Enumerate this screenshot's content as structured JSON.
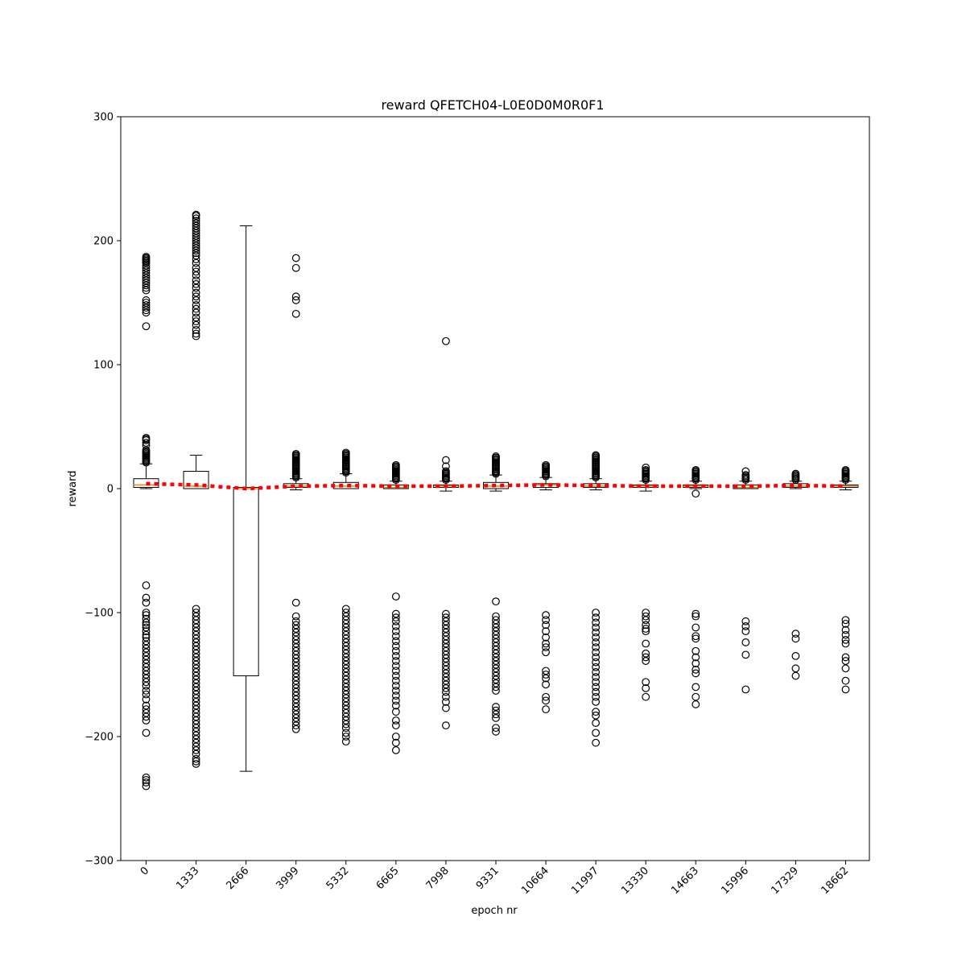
{
  "chart_data": {
    "type": "box",
    "title": "reward QFETCH04-L0E0D0M0R0F1",
    "xlabel": "epoch nr",
    "ylabel": "reward",
    "ylim": [
      -300,
      300
    ],
    "yticks": [
      -300,
      -200,
      -100,
      0,
      100,
      200,
      300
    ],
    "y_tick_labels": [
      "−300",
      "−200",
      "−100",
      "0",
      "100",
      "200",
      "300"
    ],
    "categories": [
      "0",
      "1333",
      "2666",
      "3999",
      "5332",
      "6665",
      "7998",
      "9331",
      "10664",
      "11997",
      "13330",
      "14663",
      "15996",
      "17329",
      "18662"
    ],
    "grid": false,
    "legend": "none",
    "colors": {
      "box": "#000000",
      "median": "#ff7f0e",
      "mean_line": "#ff0000",
      "flier": "#000000"
    },
    "boxes": [
      {
        "q1": 1,
        "median": 3,
        "q3": 8,
        "whisker_low": 0,
        "whisker_high": 20,
        "fliers_high": [
          21,
          22,
          23,
          24,
          25,
          26,
          27,
          28,
          29,
          30,
          31,
          35,
          37,
          39,
          40,
          41,
          131,
          142,
          144,
          146,
          148,
          150,
          152,
          160,
          162,
          164,
          166,
          168,
          170,
          172,
          174,
          176,
          178,
          180,
          182,
          183,
          184,
          185,
          186,
          187
        ],
        "fliers_low": [
          -78,
          -88,
          -92,
          -100,
          -102,
          -105,
          -108,
          -110,
          -112,
          -115,
          -118,
          -120,
          -123,
          -126,
          -129,
          -132,
          -135,
          -138,
          -141,
          -144,
          -147,
          -150,
          -153,
          -156,
          -159,
          -163,
          -166,
          -170,
          -175,
          -178,
          -181,
          -184,
          -187,
          -197,
          -233,
          -235,
          -237,
          -240
        ]
      },
      {
        "q1": 0,
        "median": 2,
        "q3": 14,
        "whisker_low": 0,
        "whisker_high": 27,
        "fliers_high": [
          123,
          125,
          128,
          132,
          135,
          138,
          142,
          145,
          148,
          152,
          155,
          158,
          162,
          165,
          168,
          172,
          175,
          178,
          182,
          185,
          188,
          190,
          192,
          194,
          196,
          198,
          200,
          202,
          204,
          206,
          208,
          210,
          212,
          214,
          216,
          218,
          220,
          221
        ],
        "fliers_low": [
          -97,
          -100,
          -103,
          -106,
          -109,
          -112,
          -115,
          -118,
          -121,
          -124,
          -127,
          -130,
          -133,
          -136,
          -139,
          -142,
          -145,
          -148,
          -151,
          -154,
          -157,
          -160,
          -163,
          -166,
          -169,
          -172,
          -175,
          -178,
          -181,
          -184,
          -187,
          -190,
          -193,
          -196,
          -199,
          -202,
          -205,
          -208,
          -211,
          -214,
          -218,
          -220,
          -222
        ]
      },
      {
        "q1": -151,
        "median": 0,
        "q3": 1,
        "whisker_low": -228,
        "whisker_high": 212,
        "fliers_high": [],
        "fliers_low": []
      },
      {
        "q1": 1,
        "median": 2,
        "q3": 4,
        "whisker_low": -1,
        "whisker_high": 8,
        "fliers_high": [
          9,
          10,
          11,
          12,
          13,
          14,
          15,
          16,
          17,
          18,
          19,
          20,
          21,
          22,
          23,
          24,
          25,
          26,
          27,
          28,
          141,
          152,
          155,
          178,
          186
        ],
        "fliers_low": [
          -92,
          -103,
          -107,
          -110,
          -113,
          -116,
          -119,
          -122,
          -125,
          -128,
          -131,
          -134,
          -137,
          -140,
          -143,
          -146,
          -149,
          -152,
          -155,
          -158,
          -161,
          -164,
          -167,
          -170,
          -173,
          -176,
          -179,
          -182,
          -185,
          -188,
          -191,
          -194
        ]
      },
      {
        "q1": 0,
        "median": 2,
        "q3": 5,
        "whisker_low": 0,
        "whisker_high": 12,
        "fliers_high": [
          13,
          14,
          15,
          16,
          17,
          18,
          19,
          20,
          21,
          22,
          23,
          24,
          25,
          26,
          27,
          28,
          29
        ],
        "fliers_low": [
          -97,
          -100,
          -103,
          -106,
          -109,
          -112,
          -115,
          -118,
          -121,
          -124,
          -127,
          -130,
          -133,
          -136,
          -139,
          -142,
          -145,
          -148,
          -151,
          -154,
          -157,
          -160,
          -163,
          -166,
          -169,
          -172,
          -175,
          -178,
          -181,
          -184,
          -187,
          -190,
          -193,
          -197,
          -200,
          -204
        ]
      },
      {
        "q1": 0,
        "median": 1,
        "q3": 3,
        "whisker_low": 0,
        "whisker_high": 6,
        "fliers_high": [
          7,
          8,
          9,
          10,
          11,
          12,
          13,
          14,
          15,
          16,
          17,
          18,
          19
        ],
        "fliers_low": [
          -87,
          -101,
          -104,
          -107,
          -111,
          -115,
          -119,
          -123,
          -127,
          -131,
          -135,
          -139,
          -143,
          -147,
          -151,
          -155,
          -159,
          -163,
          -167,
          -171,
          -175,
          -180,
          -187,
          -191,
          -200,
          -205,
          -211
        ]
      },
      {
        "q1": 1,
        "median": 2,
        "q3": 3,
        "whisker_low": -2,
        "whisker_high": 6,
        "fliers_high": [
          7,
          8,
          9,
          10,
          11,
          12,
          13,
          14,
          18,
          23,
          119
        ],
        "fliers_low": [
          -101,
          -104,
          -107,
          -110,
          -113,
          -116,
          -119,
          -122,
          -125,
          -128,
          -131,
          -134,
          -137,
          -140,
          -143,
          -146,
          -149,
          -152,
          -155,
          -158,
          -161,
          -164,
          -168,
          -172,
          -177,
          -191
        ]
      },
      {
        "q1": 0,
        "median": 2,
        "q3": 5,
        "whisker_low": -2,
        "whisker_high": 11,
        "fliers_high": [
          12,
          13,
          14,
          15,
          16,
          17,
          18,
          19,
          20,
          21,
          22,
          23,
          24,
          25,
          26
        ],
        "fliers_low": [
          -91,
          -103,
          -106,
          -109,
          -112,
          -115,
          -118,
          -121,
          -124,
          -127,
          -130,
          -133,
          -136,
          -139,
          -142,
          -145,
          -148,
          -151,
          -154,
          -157,
          -160,
          -163,
          -176,
          -179,
          -182,
          -185,
          -193,
          -196
        ]
      },
      {
        "q1": 1,
        "median": 3,
        "q3": 4,
        "whisker_low": -1,
        "whisker_high": 9,
        "fliers_high": [
          10,
          11,
          12,
          13,
          14,
          15,
          16,
          17,
          18,
          19
        ],
        "fliers_low": [
          -102,
          -106,
          -110,
          -115,
          -120,
          -125,
          -128,
          -132,
          -147,
          -150,
          -153,
          -158,
          -168,
          -171,
          -178
        ]
      },
      {
        "q1": 1,
        "median": 2,
        "q3": 4,
        "whisker_low": -1,
        "whisker_high": 8,
        "fliers_high": [
          9,
          10,
          11,
          12,
          13,
          14,
          15,
          16,
          17,
          18,
          19,
          20,
          21,
          22,
          23,
          24,
          25,
          26,
          27
        ],
        "fliers_low": [
          -100,
          -104,
          -108,
          -112,
          -116,
          -120,
          -124,
          -128,
          -132,
          -136,
          -140,
          -144,
          -148,
          -152,
          -156,
          -160,
          -164,
          -168,
          -172,
          -180,
          -183,
          -189,
          -197,
          -205
        ]
      },
      {
        "q1": 1,
        "median": 2,
        "q3": 3,
        "whisker_low": -2,
        "whisker_high": 6,
        "fliers_high": [
          7,
          8,
          9,
          10,
          11,
          12,
          13,
          14,
          15,
          17
        ],
        "fliers_low": [
          -100,
          -103,
          -106,
          -110,
          -113,
          -115,
          -125,
          -133,
          -136,
          -139,
          -156,
          -161,
          -168
        ]
      },
      {
        "q1": 1,
        "median": 2,
        "q3": 3,
        "whisker_low": 0,
        "whisker_high": 6,
        "fliers_high": [
          7,
          8,
          9,
          10,
          11,
          12,
          13,
          14,
          15
        ],
        "fliers_low": [
          -101,
          -103,
          -112,
          -119,
          -121,
          -131,
          -136,
          -141,
          -146,
          -149,
          -160,
          -168,
          -174
        ],
        "fliers_low_extra": [
          -4
        ]
      },
      {
        "q1": 0,
        "median": 1,
        "q3": 3,
        "whisker_low": 0,
        "whisker_high": 6,
        "fliers_high": [
          7,
          8,
          9,
          10,
          11,
          14
        ],
        "fliers_low": [
          -107,
          -111,
          -115,
          -124,
          -134,
          -162
        ]
      },
      {
        "q1": 1,
        "median": 2,
        "q3": 4,
        "whisker_low": 0,
        "whisker_high": 6,
        "fliers_high": [
          7,
          8,
          9,
          10,
          11,
          12
        ],
        "fliers_low": [
          -117,
          -121,
          -135,
          -145,
          -151
        ]
      },
      {
        "q1": 1,
        "median": 2,
        "q3": 3,
        "whisker_low": -1,
        "whisker_high": 6,
        "fliers_high": [
          7,
          8,
          9,
          10,
          11,
          12,
          13,
          14,
          15
        ],
        "fliers_low": [
          -106,
          -109,
          -114,
          -118,
          -122,
          -125,
          -136,
          -139,
          -145,
          -155,
          -162
        ]
      }
    ],
    "means": [
      4,
      3,
      0,
      2,
      2.5,
      2,
      2,
      2.5,
      3,
      2.5,
      2,
      2,
      2,
      2.5,
      2
    ]
  }
}
